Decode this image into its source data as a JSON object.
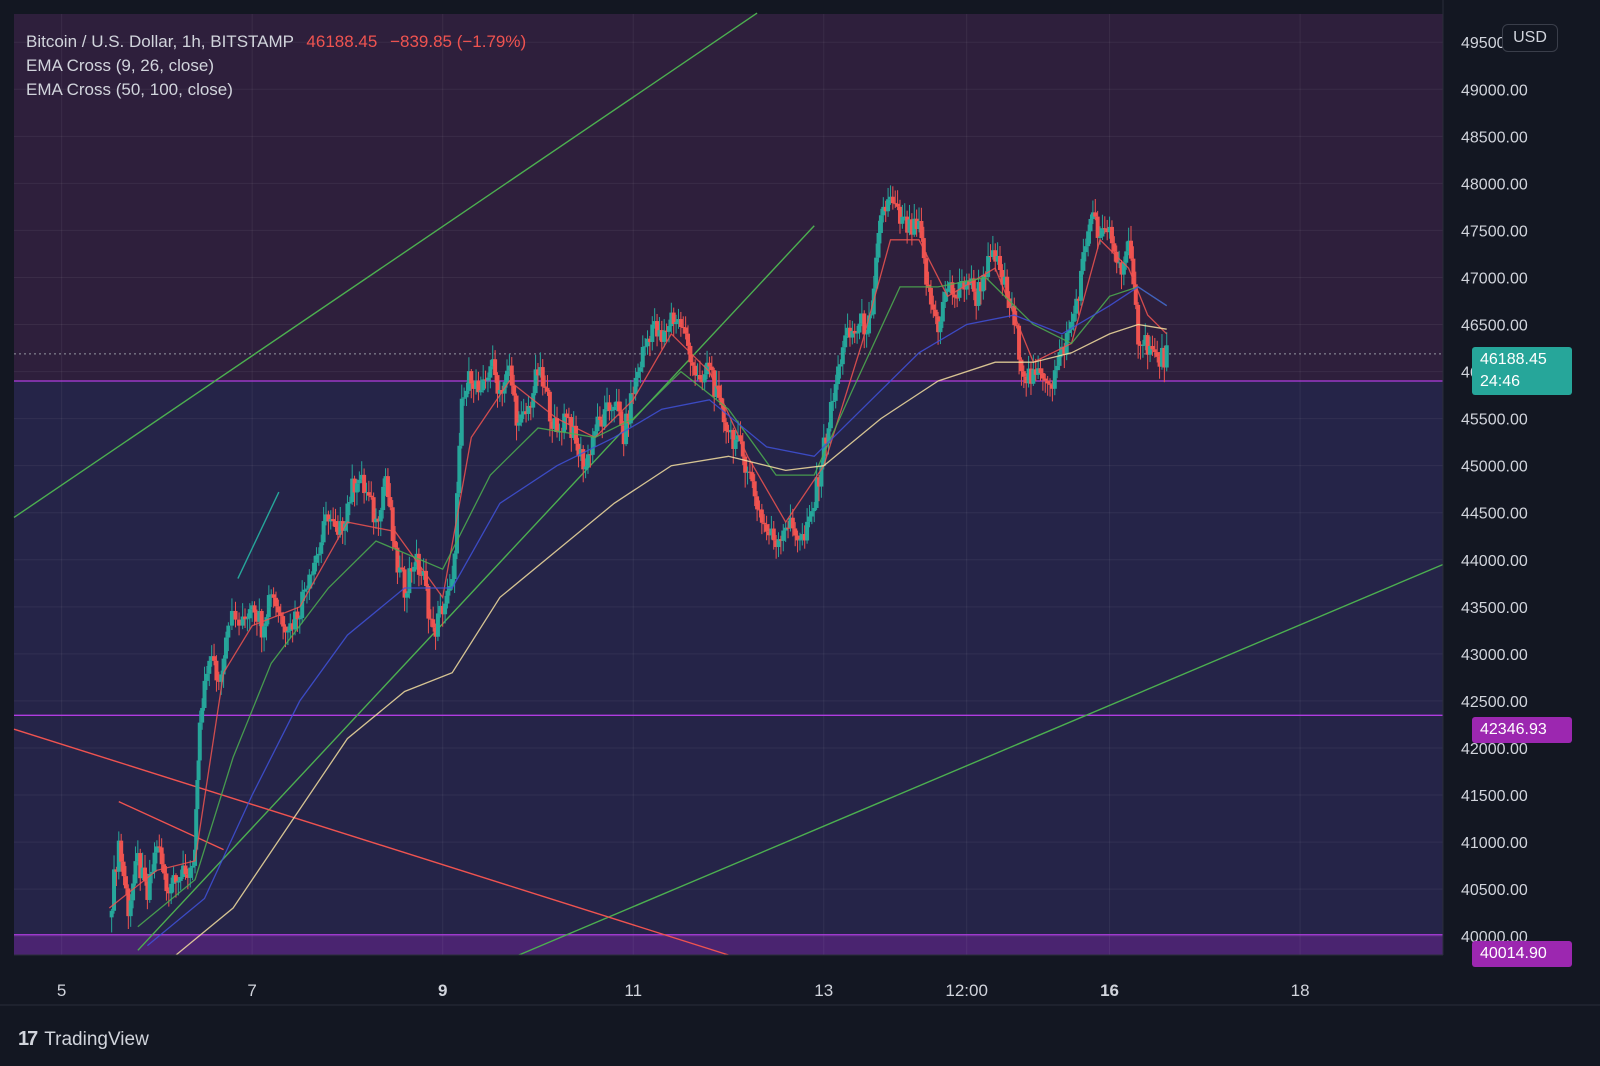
{
  "header": {
    "symbol": "Bitcoin / U.S. Dollar, 1h, BITSTAMP",
    "last": "46188.45",
    "change": "−839.85 (−1.79%)",
    "indicator1": "EMA Cross (9, 26, close)",
    "indicator2": "EMA Cross (50, 100, close)"
  },
  "currency_button": "USD",
  "price_tag": {
    "price": "46188.45",
    "countdown": "24:46"
  },
  "level_tags": [
    "42346.93",
    "40014.90"
  ],
  "brand": {
    "logo": "17",
    "name": "TradingView"
  },
  "colors": {
    "background": "#131722",
    "upper_zone": "#2e1f3c",
    "lower_zone": "#252448",
    "bottom_zone": "#4a2470",
    "candle_up": "#26a69a",
    "candle_down": "#ef5350",
    "ema9": "#ef5350",
    "ema26": "#4caf50",
    "ema50": "#3f51d9",
    "ema100": "#f5dfa0",
    "trendline_green": "#4caf50",
    "trendline_red": "#ef5350",
    "level_line": "#b03ce0"
  },
  "chart_data": {
    "type": "candlestick",
    "title": "Bitcoin / U.S. Dollar, 1h, BITSTAMP",
    "ylim": [
      39800,
      49800
    ],
    "xlim": [
      4.5,
      19.5
    ],
    "y_ticks": [
      "49500.00",
      "49000.00",
      "48500.00",
      "48000.00",
      "47500.00",
      "47000.00",
      "46500.00",
      "46000.00",
      "45500.00",
      "45000.00",
      "44500.00",
      "44000.00",
      "43500.00",
      "43000.00",
      "42500.00",
      "42000.00",
      "41500.00",
      "41000.00",
      "40500.00",
      "40000.00"
    ],
    "x_ticks": [
      {
        "x": 5,
        "label": "5",
        "bold": false
      },
      {
        "x": 7,
        "label": "7",
        "bold": false
      },
      {
        "x": 9,
        "label": "9",
        "bold": true
      },
      {
        "x": 11,
        "label": "11",
        "bold": false
      },
      {
        "x": 13,
        "label": "13",
        "bold": false
      },
      {
        "x": 14.5,
        "label": "12:00",
        "bold": false
      },
      {
        "x": 16,
        "label": "16",
        "bold": true
      },
      {
        "x": 18,
        "label": "18",
        "bold": false
      }
    ],
    "horizontal_levels": [
      45900,
      42346.93,
      40014.9
    ],
    "last_price": 46188.45,
    "close_path": [
      [
        5.5,
        40200
      ],
      [
        5.6,
        41000
      ],
      [
        5.7,
        40300
      ],
      [
        5.8,
        40800
      ],
      [
        5.9,
        40400
      ],
      [
        6.0,
        41000
      ],
      [
        6.1,
        40500
      ],
      [
        6.2,
        40700
      ],
      [
        6.3,
        40600
      ],
      [
        6.4,
        40900
      ],
      [
        6.45,
        42200
      ],
      [
        6.55,
        43000
      ],
      [
        6.65,
        42700
      ],
      [
        6.75,
        43400
      ],
      [
        6.9,
        43300
      ],
      [
        7.0,
        43600
      ],
      [
        7.1,
        43300
      ],
      [
        7.2,
        43700
      ],
      [
        7.3,
        43400
      ],
      [
        7.4,
        43300
      ],
      [
        7.5,
        43500
      ],
      [
        7.6,
        43900
      ],
      [
        7.7,
        44100
      ],
      [
        7.8,
        44500
      ],
      [
        7.9,
        44200
      ],
      [
        8.0,
        44600
      ],
      [
        8.1,
        44900
      ],
      [
        8.2,
        44700
      ],
      [
        8.3,
        44400
      ],
      [
        8.4,
        44900
      ],
      [
        8.5,
        44000
      ],
      [
        8.6,
        43700
      ],
      [
        8.7,
        44000
      ],
      [
        8.8,
        43800
      ],
      [
        8.9,
        43200
      ],
      [
        9.0,
        43500
      ],
      [
        9.1,
        43700
      ],
      [
        9.2,
        45600
      ],
      [
        9.3,
        46000
      ],
      [
        9.4,
        45700
      ],
      [
        9.5,
        46100
      ],
      [
        9.6,
        45800
      ],
      [
        9.7,
        46000
      ],
      [
        9.8,
        45400
      ],
      [
        9.9,
        45600
      ],
      [
        10.0,
        46000
      ],
      [
        10.1,
        45700
      ],
      [
        10.2,
        45300
      ],
      [
        10.3,
        45600
      ],
      [
        10.4,
        45200
      ],
      [
        10.5,
        45000
      ],
      [
        10.6,
        45400
      ],
      [
        10.7,
        45500
      ],
      [
        10.8,
        45700
      ],
      [
        10.9,
        45300
      ],
      [
        11.0,
        45800
      ],
      [
        11.1,
        46200
      ],
      [
        11.2,
        46500
      ],
      [
        11.3,
        46300
      ],
      [
        11.4,
        46600
      ],
      [
        11.5,
        46500
      ],
      [
        11.6,
        46200
      ],
      [
        11.7,
        45800
      ],
      [
        11.8,
        46100
      ],
      [
        11.9,
        45600
      ],
      [
        12.0,
        45400
      ],
      [
        12.1,
        45200
      ],
      [
        12.2,
        45000
      ],
      [
        12.3,
        44600
      ],
      [
        12.4,
        44300
      ],
      [
        12.5,
        44200
      ],
      [
        12.6,
        44400
      ],
      [
        12.7,
        44300
      ],
      [
        12.8,
        44200
      ],
      [
        12.9,
        44600
      ],
      [
        13.0,
        45200
      ],
      [
        13.1,
        45700
      ],
      [
        13.2,
        46300
      ],
      [
        13.3,
        46400
      ],
      [
        13.4,
        46500
      ],
      [
        13.5,
        46500
      ],
      [
        13.6,
        47700
      ],
      [
        13.7,
        47800
      ],
      [
        13.8,
        47600
      ],
      [
        13.9,
        47500
      ],
      [
        14.0,
        47500
      ],
      [
        14.1,
        46800
      ],
      [
        14.2,
        46500
      ],
      [
        14.3,
        46900
      ],
      [
        14.4,
        46800
      ],
      [
        14.5,
        47000
      ],
      [
        14.6,
        46800
      ],
      [
        14.7,
        47100
      ],
      [
        14.8,
        47200
      ],
      [
        14.9,
        46900
      ],
      [
        15.0,
        46500
      ],
      [
        15.1,
        46000
      ],
      [
        15.2,
        45900
      ],
      [
        15.3,
        46000
      ],
      [
        15.4,
        45900
      ],
      [
        15.5,
        46200
      ],
      [
        15.6,
        46500
      ],
      [
        15.7,
        47000
      ],
      [
        15.8,
        47700
      ],
      [
        15.9,
        47400
      ],
      [
        16.0,
        47500
      ],
      [
        16.1,
        47100
      ],
      [
        16.2,
        47300
      ],
      [
        16.3,
        46400
      ],
      [
        16.4,
        46300
      ],
      [
        16.5,
        46100
      ],
      [
        16.6,
        46188
      ]
    ],
    "ema_series": [
      {
        "key": "ema9",
        "points": [
          [
            5.5,
            40300
          ],
          [
            6.0,
            40700
          ],
          [
            6.4,
            40800
          ],
          [
            6.7,
            42800
          ],
          [
            7.0,
            43300
          ],
          [
            7.5,
            43500
          ],
          [
            8.0,
            44400
          ],
          [
            8.5,
            44300
          ],
          [
            9.0,
            43600
          ],
          [
            9.3,
            45300
          ],
          [
            9.7,
            45900
          ],
          [
            10.2,
            45500
          ],
          [
            10.6,
            45300
          ],
          [
            11.0,
            45700
          ],
          [
            11.4,
            46400
          ],
          [
            11.8,
            46000
          ],
          [
            12.2,
            45100
          ],
          [
            12.6,
            44400
          ],
          [
            13.0,
            45000
          ],
          [
            13.4,
            46300
          ],
          [
            13.7,
            47400
          ],
          [
            14.0,
            47400
          ],
          [
            14.3,
            46800
          ],
          [
            14.8,
            47100
          ],
          [
            15.2,
            46100
          ],
          [
            15.6,
            46300
          ],
          [
            15.9,
            47400
          ],
          [
            16.2,
            47100
          ],
          [
            16.4,
            46600
          ],
          [
            16.6,
            46400
          ]
        ]
      },
      {
        "key": "ema26",
        "points": [
          [
            5.8,
            40100
          ],
          [
            6.4,
            40600
          ],
          [
            6.8,
            41900
          ],
          [
            7.2,
            42900
          ],
          [
            7.8,
            43700
          ],
          [
            8.3,
            44200
          ],
          [
            9.0,
            43900
          ],
          [
            9.5,
            44900
          ],
          [
            10.0,
            45400
          ],
          [
            10.6,
            45300
          ],
          [
            11.0,
            45500
          ],
          [
            11.5,
            46000
          ],
          [
            12.0,
            45600
          ],
          [
            12.5,
            44900
          ],
          [
            12.9,
            44900
          ],
          [
            13.3,
            45800
          ],
          [
            13.8,
            46900
          ],
          [
            14.2,
            46900
          ],
          [
            14.7,
            47000
          ],
          [
            15.2,
            46500
          ],
          [
            15.6,
            46300
          ],
          [
            16.0,
            46800
          ],
          [
            16.3,
            46900
          ],
          [
            16.6,
            46700
          ]
        ]
      },
      {
        "key": "ema50",
        "points": [
          [
            5.9,
            39900
          ],
          [
            6.5,
            40400
          ],
          [
            7.0,
            41500
          ],
          [
            7.5,
            42500
          ],
          [
            8.0,
            43200
          ],
          [
            8.6,
            43700
          ],
          [
            9.1,
            43700
          ],
          [
            9.6,
            44600
          ],
          [
            10.2,
            45000
          ],
          [
            10.8,
            45300
          ],
          [
            11.3,
            45600
          ],
          [
            11.8,
            45700
          ],
          [
            12.4,
            45200
          ],
          [
            12.9,
            45100
          ],
          [
            13.5,
            45700
          ],
          [
            14.0,
            46200
          ],
          [
            14.5,
            46500
          ],
          [
            15.0,
            46600
          ],
          [
            15.5,
            46400
          ],
          [
            16.0,
            46700
          ],
          [
            16.3,
            46900
          ],
          [
            16.6,
            46700
          ]
        ]
      },
      {
        "key": "ema100",
        "points": [
          [
            6.2,
            39800
          ],
          [
            6.8,
            40300
          ],
          [
            7.4,
            41200
          ],
          [
            8.0,
            42100
          ],
          [
            8.6,
            42600
          ],
          [
            9.1,
            42800
          ],
          [
            9.6,
            43600
          ],
          [
            10.2,
            44100
          ],
          [
            10.8,
            44600
          ],
          [
            11.4,
            45000
          ],
          [
            12.0,
            45100
          ],
          [
            12.6,
            44950
          ],
          [
            13.0,
            45000
          ],
          [
            13.6,
            45500
          ],
          [
            14.2,
            45900
          ],
          [
            14.8,
            46100
          ],
          [
            15.2,
            46100
          ],
          [
            15.6,
            46200
          ],
          [
            16.0,
            46400
          ],
          [
            16.3,
            46500
          ],
          [
            16.6,
            46450
          ]
        ]
      }
    ],
    "trendlines": [
      {
        "color": "trendline_green",
        "points": [
          [
            4.5,
            44450
          ],
          [
            12.3,
            49810
          ]
        ]
      },
      {
        "color": "trendline_green",
        "points": [
          [
            5.8,
            39850
          ],
          [
            12.9,
            47550
          ]
        ]
      },
      {
        "color": "trendline_green",
        "points": [
          [
            9.8,
            39800
          ],
          [
            19.5,
            43950
          ]
        ]
      },
      {
        "color": "trendline_red",
        "points": [
          [
            4.5,
            42200
          ],
          [
            12.0,
            39800
          ]
        ]
      },
      {
        "color": "trendline_red",
        "points": [
          [
            5.6,
            41430
          ],
          [
            6.7,
            40920
          ]
        ]
      },
      {
        "color": "candle_up",
        "points": [
          [
            6.85,
            43800
          ],
          [
            7.28,
            44720
          ]
        ]
      }
    ]
  }
}
